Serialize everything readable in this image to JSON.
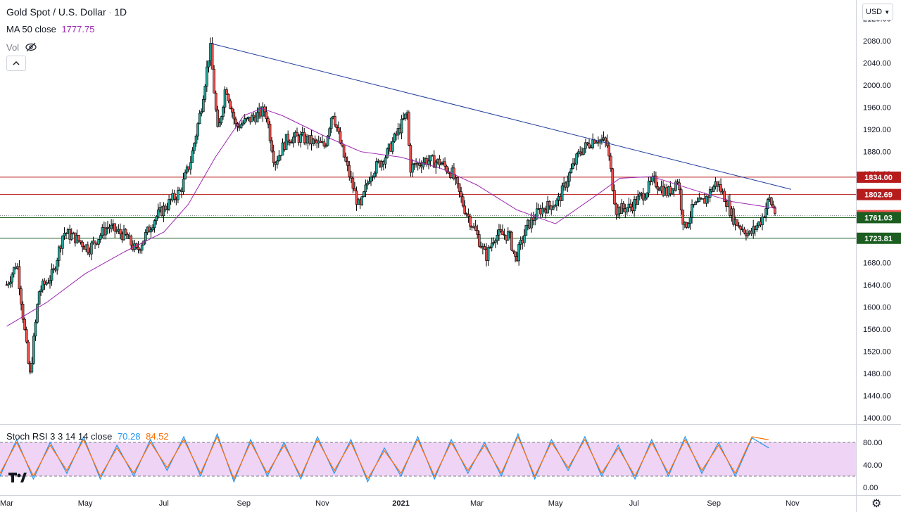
{
  "header": {
    "symbol": "Gold Spot / U.S. Dollar",
    "sep1": "·",
    "timeframe": "1D",
    "ma_label": "MA 50 close",
    "ma_value": "1777.75",
    "vol_label": "Vol",
    "currency_button": "USD",
    "eye_icon": "eye-hidden-icon",
    "collapse_icon": "chevron-up-icon"
  },
  "stoch": {
    "label": "Stoch RSI 3 3 14 14 close",
    "k_value": "70.28",
    "d_value": "84.52"
  },
  "colors": {
    "up": "#26a69a",
    "down": "#ef5350",
    "ma": "#9c27b0",
    "trendline": "#2962ff",
    "resistance": "#b71c1c",
    "support": "#1b5e20",
    "stoch_fill": "#e9c6f3",
    "k_line": "#2196f3",
    "d_line": "#ff6d00"
  },
  "chart_data": [
    {
      "type": "candlestick",
      "title": "Gold Spot / U.S. Dollar · 1D",
      "x_ticks": [
        "Mar",
        "May",
        "Jul",
        "Sep",
        "Nov",
        "2021",
        "Mar",
        "May",
        "Jul",
        "Sep",
        "Nov"
      ],
      "y_ticks": [
        "1400.00",
        "1440.00",
        "1480.00",
        "1520.00",
        "1560.00",
        "1600.00",
        "1640.00",
        "1680.00",
        "1720.00",
        "1760.00",
        "1800.00",
        "1840.00",
        "1880.00",
        "1920.00",
        "1960.00",
        "2000.00",
        "2040.00",
        "2080.00",
        "2120.00"
      ],
      "ylim": [
        1400,
        2120
      ],
      "price_levels": [
        {
          "label": "1834.00",
          "value": 1834.0,
          "color": "#b71c1c"
        },
        {
          "label": "1802.69",
          "value": 1802.69,
          "color": "#b71c1c"
        },
        {
          "label": "1764.58",
          "value": 1764.58,
          "color": "#ef5350"
        },
        {
          "label": "1761.03",
          "value": 1761.03,
          "color": "#1b5e20"
        },
        {
          "label": "1723.81",
          "value": 1723.81,
          "color": "#1b5e20"
        }
      ],
      "trendline": {
        "from": [
          "2020-08-07",
          2075
        ],
        "to": [
          "2021-10-31",
          1812
        ]
      },
      "price_path": [
        [
          "2020-03-01",
          1640
        ],
        [
          "2020-03-09",
          1680
        ],
        [
          "2020-03-19",
          1472
        ],
        [
          "2020-03-26",
          1628
        ],
        [
          "2020-04-06",
          1660
        ],
        [
          "2020-04-14",
          1735
        ],
        [
          "2020-04-23",
          1725
        ],
        [
          "2020-05-04",
          1705
        ],
        [
          "2020-05-18",
          1745
        ],
        [
          "2020-06-01",
          1728
        ],
        [
          "2020-06-10",
          1700
        ],
        [
          "2020-06-24",
          1760
        ],
        [
          "2020-07-06",
          1790
        ],
        [
          "2020-07-14",
          1810
        ],
        [
          "2020-07-22",
          1865
        ],
        [
          "2020-07-30",
          1960
        ],
        [
          "2020-08-06",
          2070
        ],
        [
          "2020-08-12",
          1910
        ],
        [
          "2020-08-18",
          2000
        ],
        [
          "2020-08-26",
          1925
        ],
        [
          "2020-09-07",
          1940
        ],
        [
          "2020-09-18",
          1955
        ],
        [
          "2020-09-25",
          1860
        ],
        [
          "2020-10-05",
          1905
        ],
        [
          "2020-10-16",
          1905
        ],
        [
          "2020-10-27",
          1895
        ],
        [
          "2020-11-03",
          1890
        ],
        [
          "2020-11-09",
          1955
        ],
        [
          "2020-11-16",
          1885
        ],
        [
          "2020-11-30",
          1775
        ],
        [
          "2020-12-08",
          1840
        ],
        [
          "2020-12-21",
          1875
        ],
        [
          "2021-01-06",
          1950
        ],
        [
          "2021-01-08",
          1850
        ],
        [
          "2021-01-20",
          1865
        ],
        [
          "2021-02-01",
          1860
        ],
        [
          "2021-02-10",
          1840
        ],
        [
          "2021-02-19",
          1780
        ],
        [
          "2021-03-01",
          1730
        ],
        [
          "2021-03-08",
          1690
        ],
        [
          "2021-03-15",
          1730
        ],
        [
          "2021-03-26",
          1730
        ],
        [
          "2021-03-31",
          1685
        ],
        [
          "2021-04-09",
          1745
        ],
        [
          "2021-04-19",
          1775
        ],
        [
          "2021-05-03",
          1790
        ],
        [
          "2021-05-11",
          1835
        ],
        [
          "2021-05-20",
          1880
        ],
        [
          "2021-06-01",
          1905
        ],
        [
          "2021-06-10",
          1895
        ],
        [
          "2021-06-17",
          1775
        ],
        [
          "2021-06-28",
          1780
        ],
        [
          "2021-07-09",
          1805
        ],
        [
          "2021-07-16",
          1828
        ],
        [
          "2021-07-27",
          1805
        ],
        [
          "2021-08-04",
          1830
        ],
        [
          "2021-08-09",
          1740
        ],
        [
          "2021-08-16",
          1780
        ],
        [
          "2021-08-24",
          1790
        ],
        [
          "2021-09-03",
          1825
        ],
        [
          "2021-09-10",
          1795
        ],
        [
          "2021-09-17",
          1755
        ],
        [
          "2021-09-29",
          1730
        ],
        [
          "2021-10-08",
          1758
        ],
        [
          "2021-10-14",
          1795
        ],
        [
          "2021-10-19",
          1768
        ]
      ],
      "ma50_path": [
        [
          "2020-03-01",
          1565
        ],
        [
          "2020-04-01",
          1608
        ],
        [
          "2020-05-01",
          1660
        ],
        [
          "2020-06-01",
          1700
        ],
        [
          "2020-07-01",
          1735
        ],
        [
          "2020-07-20",
          1785
        ],
        [
          "2020-08-10",
          1870
        ],
        [
          "2020-09-01",
          1945
        ],
        [
          "2020-09-15",
          1958
        ],
        [
          "2020-10-01",
          1945
        ],
        [
          "2020-11-01",
          1910
        ],
        [
          "2020-12-01",
          1880
        ],
        [
          "2021-01-01",
          1870
        ],
        [
          "2021-02-01",
          1850
        ],
        [
          "2021-03-01",
          1820
        ],
        [
          "2021-04-01",
          1775
        ],
        [
          "2021-05-01",
          1750
        ],
        [
          "2021-06-01",
          1800
        ],
        [
          "2021-06-20",
          1832
        ],
        [
          "2021-07-15",
          1835
        ],
        [
          "2021-08-15",
          1812
        ],
        [
          "2021-09-15",
          1790
        ],
        [
          "2021-10-19",
          1777.75
        ]
      ]
    },
    {
      "type": "line",
      "title": "Stoch RSI 3 3 14 14 close",
      "y_ticks": [
        "0.00",
        "40.00",
        "80.00"
      ],
      "ylim": [
        0,
        100
      ],
      "bands": [
        20,
        80
      ],
      "series": [
        {
          "name": "70.28",
          "values": [
            20,
            85,
            15,
            80,
            25,
            90,
            15,
            75,
            20,
            85,
            30,
            90,
            20,
            95,
            10,
            85,
            20,
            80,
            15,
            90,
            25,
            85,
            10,
            70,
            20,
            90,
            15,
            85,
            25,
            80,
            20,
            95,
            15,
            85,
            30,
            90,
            20,
            75,
            15,
            85,
            20,
            90,
            25,
            80,
            20,
            88,
            70.28
          ]
        },
        {
          "name": "84.52",
          "values": [
            25,
            80,
            20,
            75,
            30,
            85,
            20,
            70,
            25,
            80,
            35,
            85,
            25,
            90,
            15,
            80,
            25,
            75,
            20,
            85,
            30,
            80,
            15,
            65,
            25,
            85,
            20,
            80,
            30,
            75,
            25,
            90,
            20,
            80,
            35,
            85,
            25,
            70,
            20,
            80,
            25,
            85,
            30,
            75,
            25,
            90,
            84.52
          ]
        }
      ]
    }
  ]
}
